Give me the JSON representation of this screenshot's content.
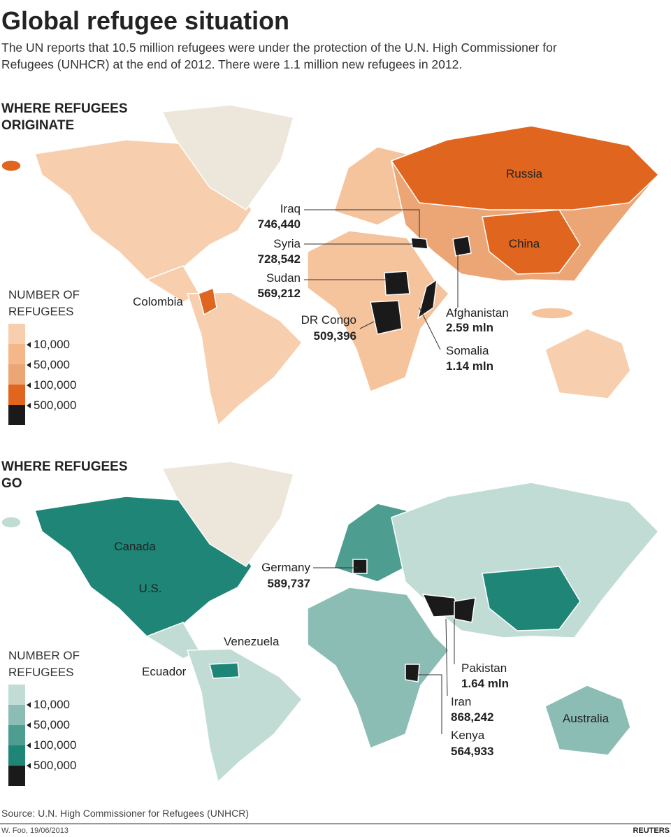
{
  "header": {
    "title": "Global refugee situation",
    "subtitle": "The UN reports that 10.5 million refugees were under the protection of the U.N. High Commissioner for Refugees (UNHCR) at the end of 2012. There were 1.1 million new refugees in 2012."
  },
  "maps": [
    {
      "heading": "WHERE REFUGEES ORIGINATE",
      "legend": {
        "title": "NUMBER OF REFUGEES",
        "items": [
          "10,000",
          "50,000",
          "100,000",
          "500,000"
        ]
      },
      "labels": [
        {
          "name": "Russia"
        },
        {
          "name": "China"
        },
        {
          "name": "Colombia"
        },
        {
          "name": "Iraq",
          "value": "746,440"
        },
        {
          "name": "Syria",
          "value": "728,542"
        },
        {
          "name": "Sudan",
          "value": "569,212"
        },
        {
          "name": "DR Congo",
          "value": "509,396"
        },
        {
          "name": "Afghanistan",
          "value": "2.59 mln"
        },
        {
          "name": "Somalia",
          "value": "1.14 mln"
        }
      ]
    },
    {
      "heading": "WHERE REFUGEES GO",
      "legend": {
        "title": "NUMBER OF REFUGEES",
        "items": [
          "10,000",
          "50,000",
          "100,000",
          "500,000"
        ]
      },
      "labels": [
        {
          "name": "Canada"
        },
        {
          "name": "U.S."
        },
        {
          "name": "Venezuela"
        },
        {
          "name": "Ecuador"
        },
        {
          "name": "Australia"
        },
        {
          "name": "Germany",
          "value": "589,737"
        },
        {
          "name": "Pakistan",
          "value": "1.64 mln"
        },
        {
          "name": "Iran",
          "value": "868,242"
        },
        {
          "name": "Kenya",
          "value": "564,933"
        }
      ]
    }
  ],
  "footer": {
    "source": "Source: U.N. High Commissioner for Refugees (UNHCR)",
    "credit": "W. Foo, 19/06/2013",
    "brand": "REUTERS"
  }
}
